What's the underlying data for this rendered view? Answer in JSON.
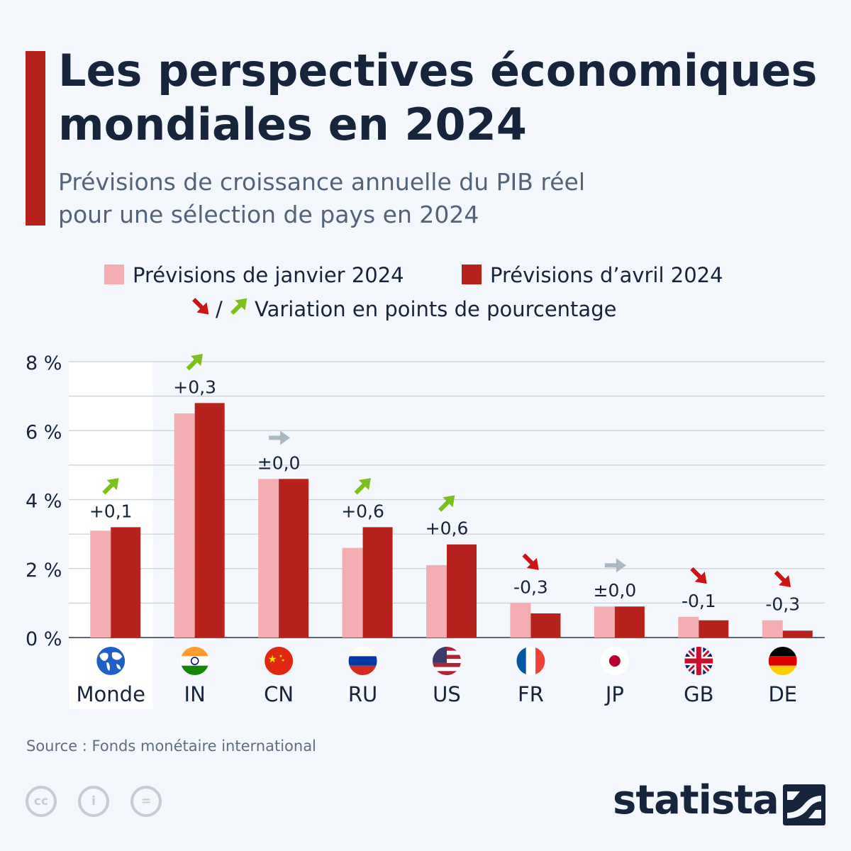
{
  "title_lines": [
    "Les perspectives économiques",
    "mondiales en 2024"
  ],
  "subtitle_lines": [
    "Prévisions de croissance annuelle du PIB réel",
    "pour une sélection de pays en 2024"
  ],
  "legend": {
    "jan": "Prévisions de janvier 2024",
    "apr": "Prévisions d’avril 2024",
    "separator": "/",
    "variation": "Variation en points de pourcentage"
  },
  "source": "Source : Fonds monétaire international",
  "brand": "statista",
  "colors": {
    "jan": "#f4aeb2",
    "apr": "#b8221c",
    "up": "#7cbf1e",
    "down": "#cc1414",
    "flat": "#a9b8c3",
    "title": "#16253b",
    "accent": "#b8221c"
  },
  "chart_data": {
    "type": "bar",
    "categories": [
      "Monde",
      "IN",
      "CN",
      "RU",
      "US",
      "FR",
      "JP",
      "GB",
      "DE"
    ],
    "series": [
      {
        "name": "Prévisions de janvier 2024",
        "values": [
          3.1,
          6.5,
          4.6,
          2.6,
          2.1,
          1.0,
          0.9,
          0.6,
          0.5
        ]
      },
      {
        "name": "Prévisions d’avril 2024",
        "values": [
          3.2,
          6.8,
          4.6,
          3.2,
          2.7,
          0.7,
          0.9,
          0.5,
          0.2
        ]
      }
    ],
    "changes": [
      "+0,1",
      "+0,3",
      "±0,0",
      "+0,6",
      "+0,6",
      "-0,3",
      "±0,0",
      "-0,1",
      "-0,3"
    ],
    "directions": [
      "up",
      "up",
      "flat",
      "up",
      "up",
      "down",
      "flat",
      "down",
      "down"
    ],
    "flag_icons": [
      "globe-icon",
      "india-flag-icon",
      "china-flag-icon",
      "russia-flag-icon",
      "usa-flag-icon",
      "france-flag-icon",
      "japan-flag-icon",
      "uk-flag-icon",
      "germany-flag-icon"
    ],
    "y_ticks": [
      "0 %",
      "2 %",
      "4 %",
      "6 %",
      "8 %"
    ],
    "ylim": [
      0,
      8
    ],
    "grid": true,
    "highlight_category": "Monde"
  }
}
